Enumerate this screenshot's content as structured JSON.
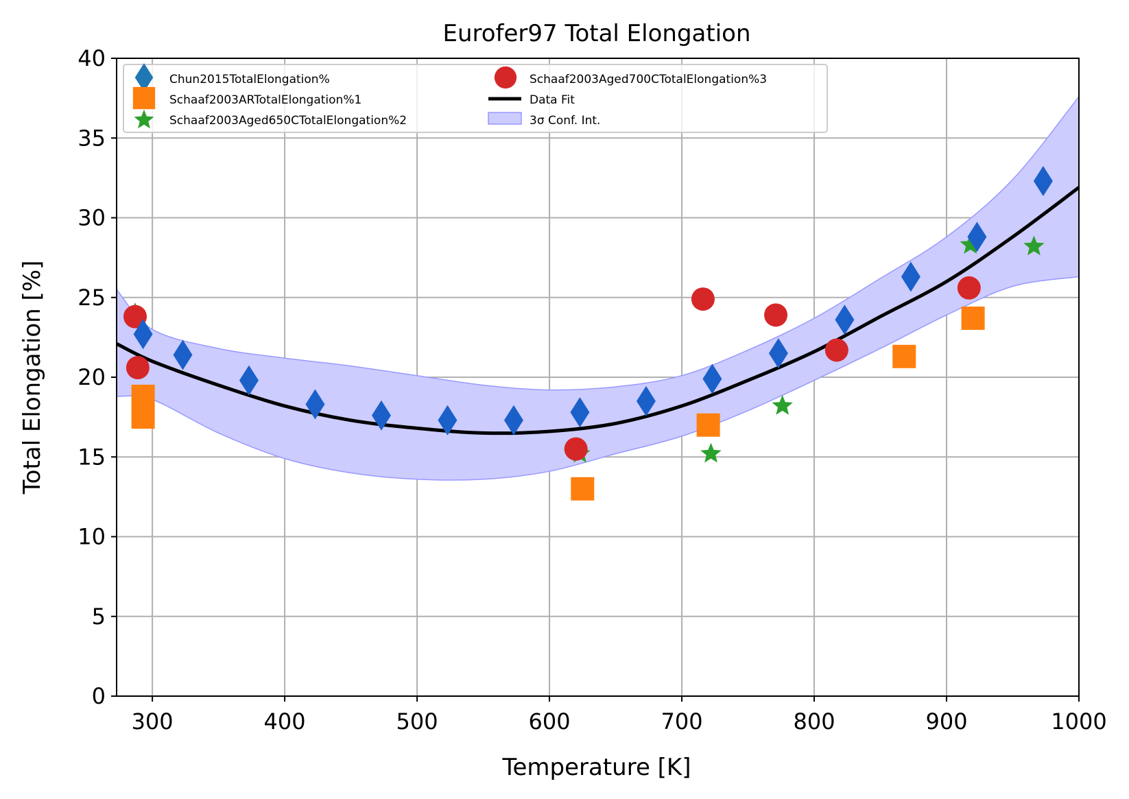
{
  "colors": {
    "chun": "#1f77b4",
    "schaaf_ar": "#ff7f0e",
    "schaaf_650": "#2ca02c",
    "schaaf_700": "#d62728",
    "fit": "#000000",
    "conf_fill": "#ccccff",
    "conf_edge": "#9999ff",
    "grid": "#b0b0b0",
    "chun_overplot": "#1a60c8"
  },
  "chart_data": {
    "type": "scatter",
    "title": "Eurofer97 Total Elongation",
    "xlabel": "Temperature [K]",
    "ylabel": "Total Elongation [%]",
    "xlim": [
      273,
      1000
    ],
    "ylim": [
      0,
      40
    ],
    "xticks": [
      300,
      400,
      500,
      600,
      700,
      800,
      900,
      1000
    ],
    "yticks": [
      0,
      5,
      10,
      15,
      20,
      25,
      30,
      35,
      40
    ],
    "grid": true,
    "legend": {
      "placement": "top-left",
      "columns": 2,
      "entries": [
        "Chun2015TotalElongation%",
        "Schaaf2003ARTotalElongation%1",
        "Schaaf2003Aged650CTotalElongation%2",
        "Schaaf2003Aged700CTotalElongation%3",
        "Data Fit",
        "3σ Conf. Int."
      ]
    },
    "series": [
      {
        "name": "Chun2015TotalElongation%",
        "marker": "diamond",
        "color": "#1f77b4",
        "x": [
          293,
          323,
          373,
          423,
          473,
          523,
          573,
          623,
          673,
          723,
          773,
          823,
          873,
          923,
          973
        ],
        "y": [
          22.7,
          21.4,
          19.8,
          18.3,
          17.6,
          17.3,
          17.3,
          17.8,
          18.5,
          19.9,
          21.5,
          23.6,
          26.3,
          28.8,
          32.3
        ]
      },
      {
        "name": "Schaaf2003ARTotalElongation%1",
        "marker": "square",
        "color": "#ff7f0e",
        "x": [
          293,
          293,
          625,
          720,
          868,
          920
        ],
        "y": [
          18.8,
          17.5,
          13.0,
          17.0,
          21.3,
          23.7
        ]
      },
      {
        "name": "Schaaf2003Aged650CTotalElongation%2",
        "marker": "star",
        "color": "#2ca02c",
        "x": [
          287,
          623,
          722,
          776,
          918,
          966
        ],
        "y": [
          24.0,
          15.2,
          15.2,
          18.2,
          28.3,
          28.2
        ]
      },
      {
        "name": "Schaaf2003Aged700CTotalElongation%3",
        "marker": "circle",
        "color": "#d62728",
        "x": [
          287,
          289,
          620,
          716,
          771,
          817,
          917
        ],
        "y": [
          23.8,
          20.6,
          15.5,
          24.9,
          23.9,
          21.7,
          25.6
        ]
      }
    ],
    "fit": {
      "name": "Data Fit",
      "x": [
        273,
        300,
        350,
        400,
        450,
        500,
        550,
        600,
        650,
        700,
        750,
        800,
        850,
        900,
        950,
        1000
      ],
      "y": [
        22.1,
        21.0,
        19.5,
        18.2,
        17.3,
        16.8,
        16.5,
        16.6,
        17.1,
        18.2,
        19.8,
        21.6,
        23.8,
        26.0,
        28.8,
        31.9
      ]
    },
    "confidence_interval": {
      "name": "3σ Conf. Int.",
      "x": [
        273,
        300,
        350,
        400,
        450,
        500,
        550,
        600,
        650,
        700,
        750,
        800,
        850,
        900,
        950,
        1000
      ],
      "upper": [
        25.5,
        23.0,
        21.8,
        21.2,
        20.7,
        20.1,
        19.5,
        19.2,
        19.4,
        20.1,
        21.7,
        23.7,
        26.2,
        28.8,
        32.4,
        37.6
      ],
      "lower": [
        18.8,
        18.6,
        16.5,
        14.9,
        14.0,
        13.6,
        13.6,
        14.1,
        15.2,
        16.3,
        17.9,
        19.8,
        21.8,
        23.9,
        25.7,
        26.3
      ]
    }
  }
}
